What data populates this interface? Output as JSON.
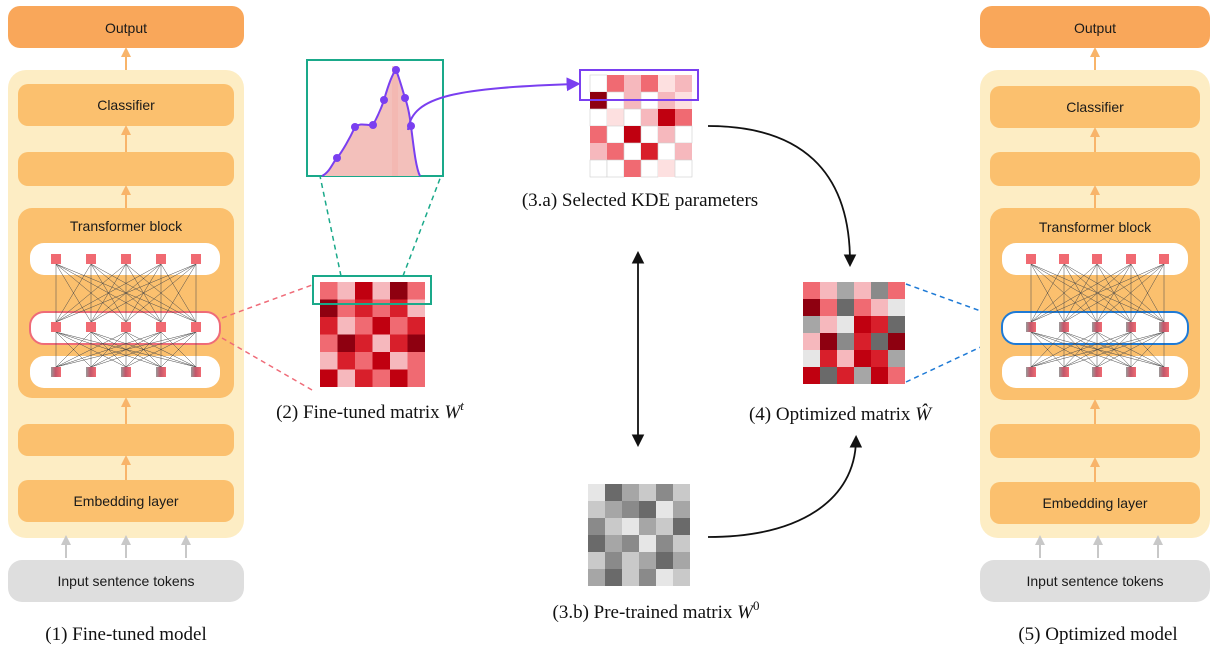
{
  "left_model": {
    "output": "Output",
    "classifier": "Classifier",
    "transformer": "Transformer block",
    "embedding": "Embedding layer",
    "input": "Input sentence tokens",
    "caption": "(1) Fine-tuned model"
  },
  "right_model": {
    "output": "Output",
    "classifier": "Classifier",
    "transformer": "Transformer block",
    "embedding": "Embedding layer",
    "input": "Input sentence tokens",
    "caption": "(5) Optimized model"
  },
  "captions": {
    "finetuned_prefix": "(2) Fine-tuned matrix ",
    "finetuned_math": "W",
    "finetuned_sup": "t",
    "kde": "(3.a) Selected KDE parameters",
    "pretrained_prefix": "(3.b) Pre-trained matrix ",
    "pretrained_math": "W",
    "pretrained_sup": "0",
    "optimized_prefix": "(4) Optimized matrix ",
    "optimized_math": "Ŵ"
  },
  "colors": {
    "model_bg": "#fdedc4",
    "block": "#fbc06e",
    "output_block": "#f9a75a",
    "input_block": "#dedede",
    "arrow_orange": "#f8b46a",
    "arrow_gray": "#c8c8c8",
    "red_node": "#f06a72",
    "highlight_red": "#ef6b78",
    "highlight_blue": "#1e7ad6",
    "teal": "#1aa98a",
    "purple": "#7a3ff0",
    "kde_fill": "#f3c0bb"
  }
}
